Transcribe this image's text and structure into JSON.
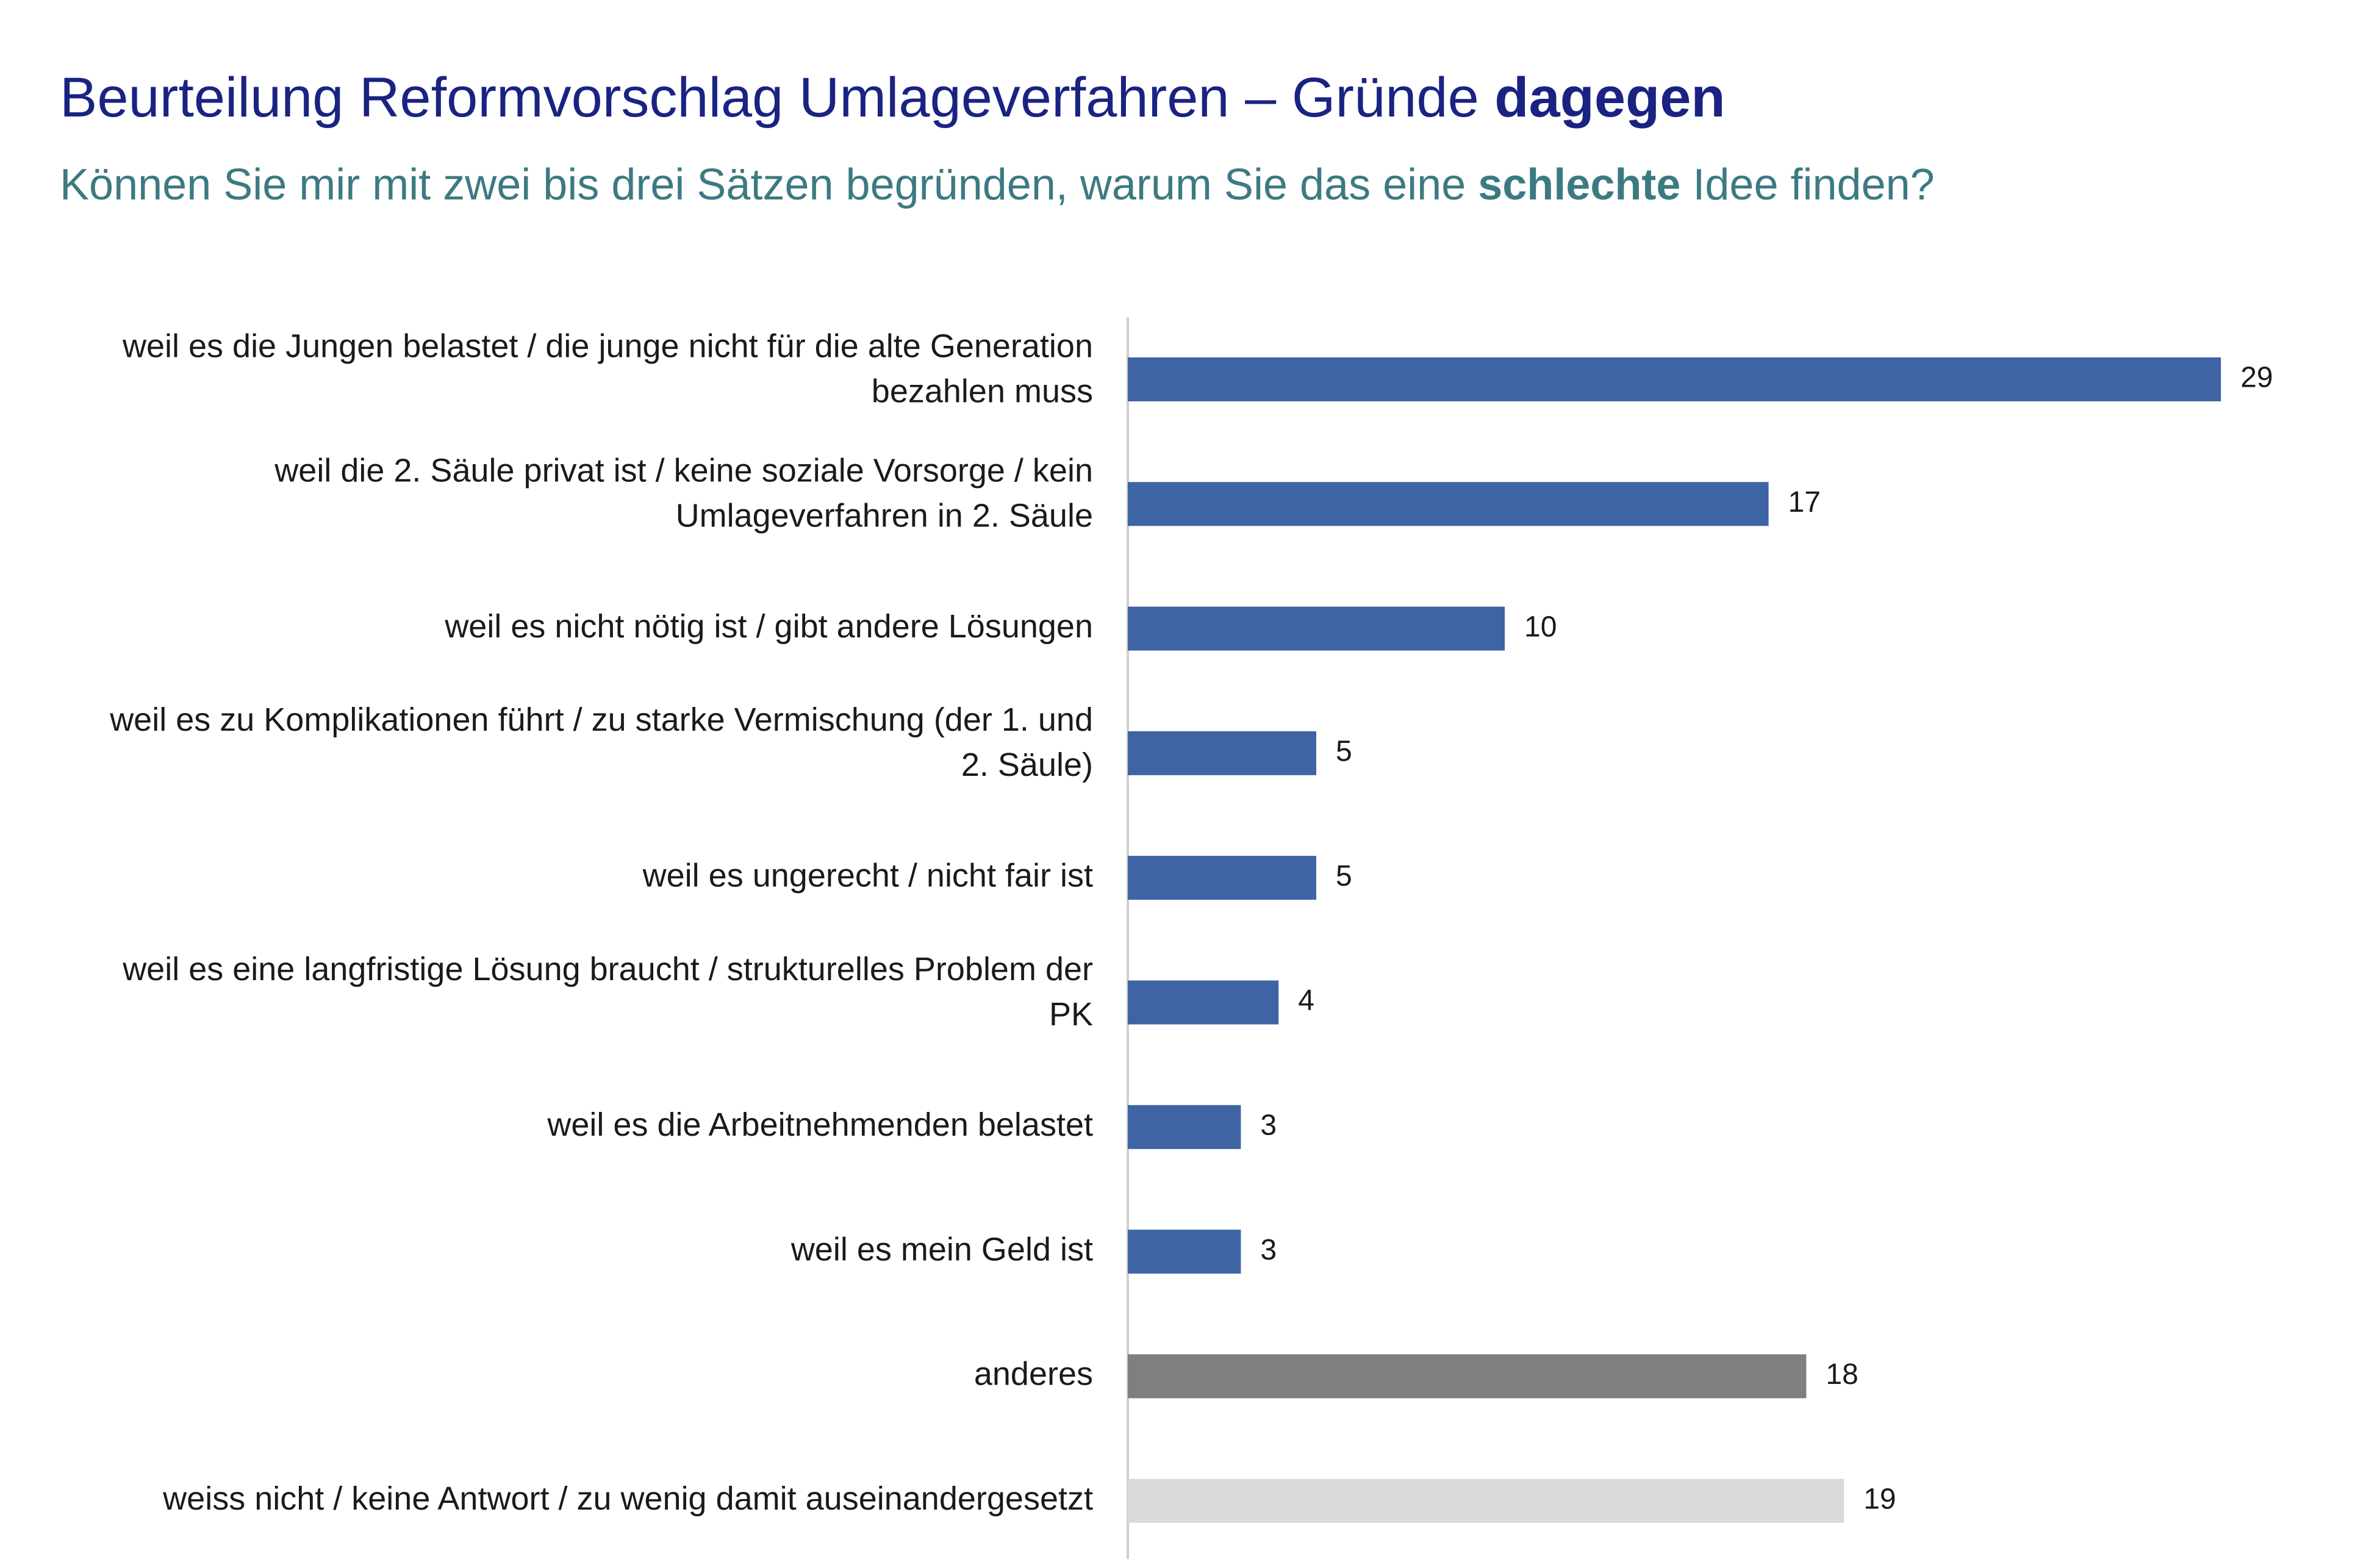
{
  "header": {
    "title_main": "Beurteilung Reformvorschlag Umlageverfahren – Gründe ",
    "title_emph": "dagegen",
    "subtitle_pre": "Können Sie mir mit zwei bis drei Sätzen begründen, warum Sie das eine ",
    "subtitle_emph": "schlechte",
    "subtitle_post": " Idee finden?"
  },
  "colors": {
    "title": "#1a2382",
    "subtitle": "#3c7a82",
    "bar_primary": "#3e64a4",
    "bar_other": "#7f7f7f",
    "bar_unknown": "#d9d9d9",
    "axis": "#d0d0d0"
  },
  "chart_data": {
    "type": "bar",
    "orientation": "horizontal",
    "categories": [
      [
        "weil es die Jungen belastet / die junge nicht für die alte Generation",
        "bezahlen muss"
      ],
      [
        "weil die 2. Säule privat ist / keine soziale Vorsorge / kein",
        "Umlageverfahren in 2. Säule"
      ],
      [
        "weil es nicht nötig ist / gibt andere Lösungen"
      ],
      [
        "weil es zu Komplikationen führt / zu starke Vermischung (der 1. und",
        "2. Säule)"
      ],
      [
        "weil es ungerecht / nicht fair ist"
      ],
      [
        "weil es eine langfristige Lösung braucht / strukturelles Problem der",
        "PK"
      ],
      [
        "weil es die Arbeitnehmenden belastet"
      ],
      [
        "weil es mein Geld ist"
      ],
      [
        "anderes"
      ],
      [
        "weiss nicht / keine Antwort / zu wenig damit auseinandergesetzt"
      ]
    ],
    "values": [
      29,
      17,
      10,
      5,
      5,
      4,
      3,
      3,
      18,
      19
    ],
    "bar_color_keys": [
      "bar_primary",
      "bar_primary",
      "bar_primary",
      "bar_primary",
      "bar_primary",
      "bar_primary",
      "bar_primary",
      "bar_primary",
      "bar_other",
      "bar_unknown"
    ],
    "xlim": [
      0,
      30
    ],
    "grid": false,
    "legend": "none"
  }
}
